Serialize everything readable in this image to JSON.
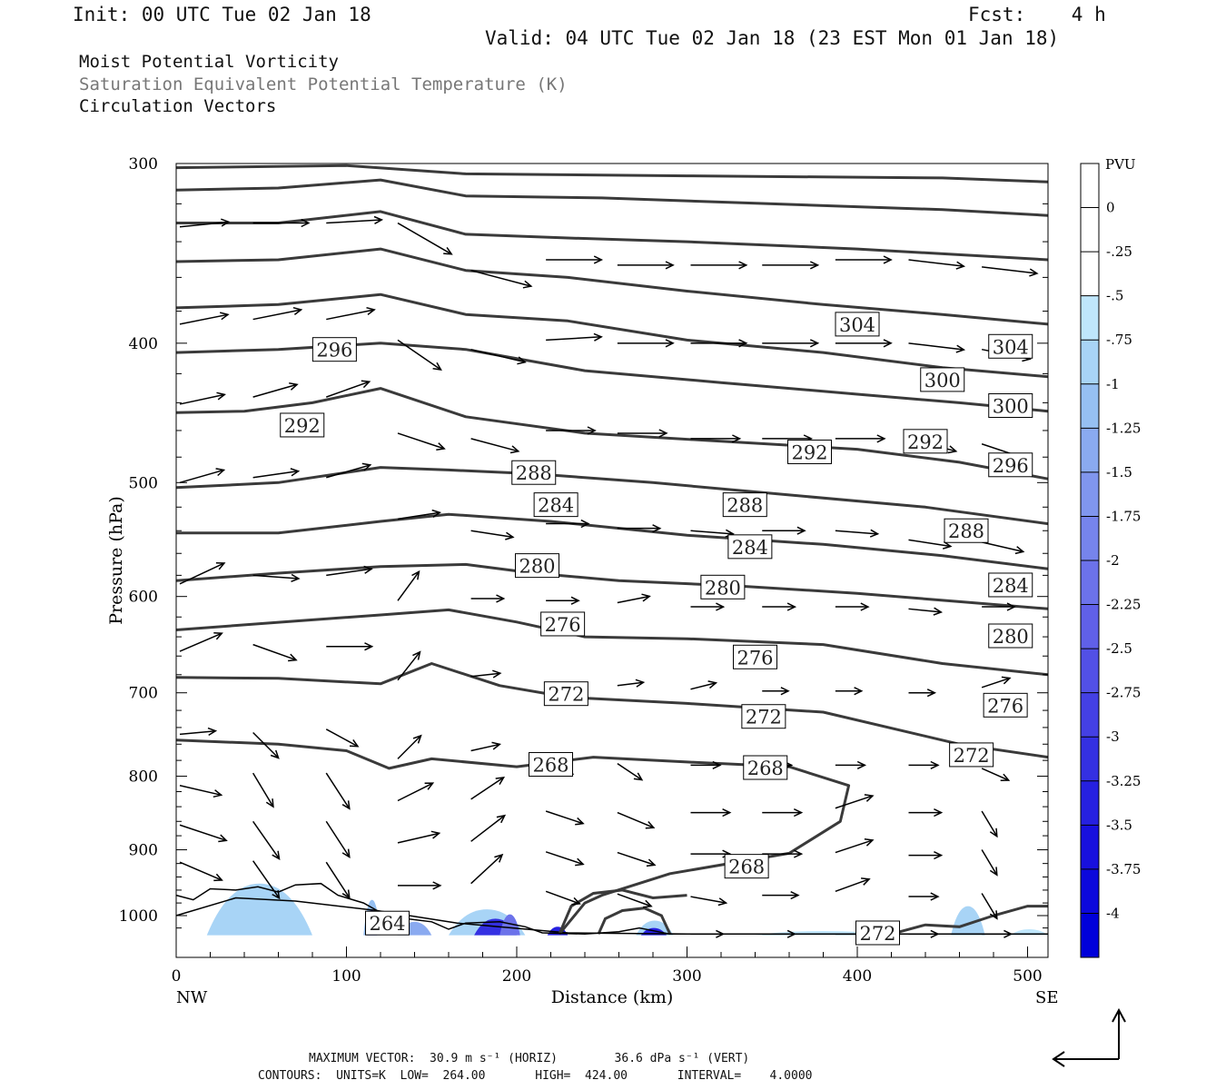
{
  "header": {
    "init": "Init: 00 UTC Tue 02 Jan 18",
    "fcst": "Fcst:    4 h",
    "valid": "Valid: 04 UTC Tue 02 Jan 18 (23 EST Mon 01 Jan 18)"
  },
  "fields": [
    "Moist Potential Vorticity",
    "Saturation Equivalent Potential Temperature (K)",
    "Circulation Vectors"
  ],
  "footer": {
    "max_vector": "MAXIMUM VECTOR:  30.9 m s⁻¹ (HORIZ)        36.6 dPa s⁻¹ (VERT)",
    "contours": "CONTOURS:  UNITS=K  LOW=  264.00       HIGH=  424.00       INTERVAL=    4.0000"
  },
  "chart_data": {
    "type": "cross-section",
    "xlabel": "Distance (km)",
    "ylabel": "Pressure (hPa)",
    "xlim": [
      0,
      512
    ],
    "ylim": [
      1030,
      300
    ],
    "y_scale": "log",
    "x_ticks": [
      0,
      100,
      200,
      300,
      400,
      500
    ],
    "y_ticks": [
      300,
      400,
      500,
      600,
      700,
      800,
      900,
      1000
    ],
    "x_end_labels": {
      "left": "NW",
      "right": "SE"
    },
    "colorbar": {
      "title": "PVU",
      "labels": [
        "0",
        "-.25",
        "-.5",
        "-.75",
        "-1",
        "-1.25",
        "-1.5",
        "-1.75",
        "-2",
        "-2.25",
        "-2.5",
        "-2.75",
        "-3",
        "-3.25",
        "-3.5",
        "-3.75",
        "-4"
      ],
      "colors": [
        "#ffffff",
        "#ffffff",
        "#bfe6fb",
        "#a8d4f6",
        "#96c0f2",
        "#8aaaf0",
        "#8096ee",
        "#7684ec",
        "#6c72ea",
        "#6060e8",
        "#5250e6",
        "#4440e4",
        "#3430e2",
        "#2620e0",
        "#1810de",
        "#0c08dc",
        "#0000da"
      ]
    },
    "contours": [
      {
        "label": "264",
        "points": [
          [
            0,
            1000
          ],
          [
            35,
            972
          ],
          [
            70,
            977
          ],
          [
            118,
            992
          ],
          [
            165,
            1012
          ],
          [
            230,
            1028
          ],
          [
            300,
            1030
          ],
          [
            380,
            1030
          ],
          [
            420,
            1030
          ],
          [
            512,
            1030
          ]
        ]
      },
      {
        "label": "268",
        "points": [
          [
            0,
            755
          ],
          [
            60,
            760
          ],
          [
            100,
            768
          ],
          [
            125,
            790
          ],
          [
            150,
            778
          ],
          [
            200,
            788
          ],
          [
            245,
            776
          ],
          [
            300,
            782
          ],
          [
            360,
            788
          ],
          [
            395,
            812
          ],
          [
            390,
            860
          ],
          [
            360,
            905
          ],
          [
            290,
            935
          ],
          [
            250,
            968
          ],
          [
            240,
            980
          ],
          [
            225,
            1030
          ]
        ]
      },
      {
        "label": "272",
        "points": [
          [
            0,
            683
          ],
          [
            60,
            684
          ],
          [
            120,
            690
          ],
          [
            150,
            668
          ],
          [
            190,
            692
          ],
          [
            230,
            705
          ],
          [
            300,
            712
          ],
          [
            380,
            722
          ],
          [
            460,
            760
          ],
          [
            512,
            776
          ]
        ]
      },
      {
        "label": "276",
        "points": [
          [
            0,
            633
          ],
          [
            70,
            624
          ],
          [
            120,
            618
          ],
          [
            160,
            613
          ],
          [
            200,
            625
          ],
          [
            240,
            640
          ],
          [
            300,
            642
          ],
          [
            380,
            648
          ],
          [
            450,
            668
          ],
          [
            512,
            680
          ]
        ]
      },
      {
        "label": "280",
        "points": [
          [
            0,
            585
          ],
          [
            60,
            578
          ],
          [
            120,
            572
          ],
          [
            170,
            570
          ],
          [
            210,
            578
          ],
          [
            260,
            585
          ],
          [
            330,
            590
          ],
          [
            400,
            597
          ],
          [
            460,
            605
          ],
          [
            512,
            612
          ]
        ]
      },
      {
        "label": "284",
        "points": [
          [
            0,
            542
          ],
          [
            60,
            542
          ],
          [
            120,
            532
          ],
          [
            160,
            526
          ],
          [
            220,
            532
          ],
          [
            300,
            544
          ],
          [
            380,
            552
          ],
          [
            450,
            562
          ],
          [
            512,
            574
          ]
        ]
      },
      {
        "label": "288",
        "points": [
          [
            0,
            504
          ],
          [
            60,
            500
          ],
          [
            120,
            488
          ],
          [
            160,
            490
          ],
          [
            210,
            493
          ],
          [
            280,
            500
          ],
          [
            360,
            510
          ],
          [
            440,
            520
          ],
          [
            512,
            534
          ]
        ]
      },
      {
        "label": "292",
        "points": [
          [
            0,
            447
          ],
          [
            40,
            446
          ],
          [
            80,
            440
          ],
          [
            120,
            430
          ],
          [
            170,
            450
          ],
          [
            240,
            462
          ],
          [
            320,
            468
          ],
          [
            400,
            474
          ],
          [
            460,
            484
          ],
          [
            512,
            497
          ]
        ]
      },
      {
        "label": "296",
        "points": [
          [
            0,
            406
          ],
          [
            60,
            404
          ],
          [
            120,
            400
          ],
          [
            170,
            404
          ],
          [
            240,
            418
          ],
          [
            320,
            426
          ],
          [
            400,
            434
          ],
          [
            460,
            440
          ],
          [
            512,
            446
          ]
        ]
      },
      {
        "label": "300",
        "points": [
          [
            0,
            378
          ],
          [
            60,
            376
          ],
          [
            120,
            370
          ],
          [
            170,
            382
          ],
          [
            230,
            386
          ],
          [
            300,
            398
          ],
          [
            380,
            406
          ],
          [
            450,
            416
          ],
          [
            512,
            422
          ]
        ]
      },
      {
        "label": "304",
        "points": [
          [
            0,
            351
          ],
          [
            60,
            350
          ],
          [
            120,
            344
          ],
          [
            170,
            356
          ],
          [
            230,
            360
          ],
          [
            300,
            368
          ],
          [
            380,
            376
          ],
          [
            450,
            382
          ],
          [
            512,
            388
          ]
        ]
      },
      {
        "label": "",
        "points": [
          [
            0,
            330
          ],
          [
            60,
            330
          ],
          [
            120,
            324
          ],
          [
            170,
            336
          ],
          [
            230,
            338
          ],
          [
            300,
            340
          ],
          [
            400,
            344
          ],
          [
            512,
            350
          ]
        ]
      },
      {
        "label": "",
        "points": [
          [
            0,
            313
          ],
          [
            60,
            312
          ],
          [
            120,
            308
          ],
          [
            170,
            316
          ],
          [
            250,
            317
          ],
          [
            350,
            320
          ],
          [
            450,
            323
          ],
          [
            512,
            326
          ]
        ]
      },
      {
        "label": "",
        "points": [
          [
            0,
            302
          ],
          [
            100,
            301
          ],
          [
            170,
            305
          ],
          [
            300,
            306
          ],
          [
            450,
            307
          ],
          [
            512,
            309
          ]
        ]
      }
    ]
  }
}
